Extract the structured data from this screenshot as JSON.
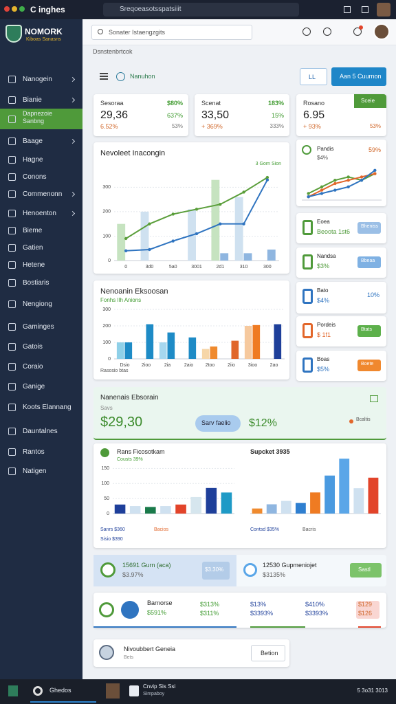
{
  "browser": {
    "tab": "C inghes",
    "url": "Sreqoeasotsspatsiiit"
  },
  "sidebar": {
    "logo": "NOMORK",
    "logo_sub": "Kiboas Sanasns",
    "active": 2,
    "menu": [
      "Nanogein",
      "Bianie",
      "Dapnezoie Sanbng",
      "Baage",
      "Hagne",
      "Conons",
      "Commenonn",
      "Henoenton",
      "Bieme",
      "Gatien",
      "Hetene",
      "Bostiaris",
      "Nengiong",
      "Gaminges",
      "Gatois",
      "Coraio",
      "Ganige",
      "Koots Elannang",
      "Dauntalnes",
      "Rantos",
      "Natigen"
    ]
  },
  "header": {
    "search": "Sonater Istaengzgits",
    "breadcrumb": "Dsnstenbrtcok"
  },
  "toolbar": {
    "label": "Nanuhon",
    "button_1": "LL",
    "button_2": "Aan 5 Cuurnon"
  },
  "stats": [
    {
      "title": "Sesoraa",
      "change": "$80%",
      "value": "29,36",
      "delta": "637%",
      "sub": "6.52%",
      "sub_2": "53%"
    },
    {
      "title": "Scenat",
      "change": "183%",
      "value": "33,50",
      "delta": "15%",
      "sub": "+ 369%",
      "sub_2": "333%"
    },
    {
      "title": "Rosano",
      "button": "Sceie",
      "value": "6.95",
      "sub": "+ 93%",
      "sub_2": "53%"
    }
  ],
  "trend_chart": {
    "type": "bar",
    "title": "Nevoleet Inacongin",
    "legend": "3 Gorn Sion",
    "categories": [
      "0",
      "3d0",
      "5a0",
      "3001",
      "2d1",
      "310",
      "300"
    ],
    "ylim": [
      0,
      360
    ],
    "yticks": [
      0,
      100,
      200,
      300
    ],
    "series": [
      {
        "type": "bar",
        "color": "#cfe1f0",
        "colors": [
          "#c6e3c0",
          "#cfe1f0",
          "#cfe1f0",
          "#cfe1f0",
          "#c6e3c0",
          "#cfe1f0",
          "#cfe1f0"
        ],
        "values": [
          150,
          200,
          null,
          210,
          330,
          260,
          null
        ]
      },
      {
        "type": "bar",
        "color": "#8fb6e0",
        "values": [
          null,
          null,
          null,
          null,
          30,
          30,
          45
        ]
      },
      {
        "type": "line",
        "color": "#5a9e3a",
        "values": [
          90,
          150,
          190,
          210,
          230,
          280,
          340
        ]
      },
      {
        "type": "line",
        "color": "#2f74c0",
        "values": [
          40,
          45,
          80,
          110,
          150,
          150,
          330
        ]
      }
    ]
  },
  "bar_chart": {
    "type": "bar",
    "title": "Nenoanin Eksoosan",
    "subtitle": "Fonhs Ilh Anions",
    "footer": "Rasosio btas",
    "categories": [
      "Dsio",
      "2ioo",
      "2ia",
      "2aio",
      "2too",
      "2iio",
      "3ioo",
      "2ao"
    ],
    "ylim": [
      0,
      300
    ],
    "yticks": [
      0,
      100,
      200,
      300
    ],
    "series": [
      {
        "type": "bar",
        "color": "#cfe1f0",
        "colors": [
          "#8fd0e8",
          "#cfe1f0",
          "#a6d7ef",
          "#cfe1f0",
          "#f6d6a8",
          "#f6d6a8",
          "#f6c99e",
          "#cfe1f0"
        ],
        "values": [
          100,
          null,
          100,
          null,
          60,
          null,
          200,
          null
        ]
      },
      {
        "type": "bar",
        "color": "#1e8bc6",
        "colors": [
          "#1e8bc6",
          "#1e8bc6",
          "#1e8bc6",
          "#1e8bc6",
          "#ef8a2e",
          "#e0662a",
          "#ef7b22",
          "#1e3f9a"
        ],
        "values": [
          100,
          210,
          160,
          130,
          75,
          110,
          205,
          210
        ]
      }
    ]
  },
  "summary": {
    "title": "Nanenais Ebsorain",
    "subtitle": "Savs",
    "value": "$29,30",
    "button": "Sarv faelio",
    "change": "$12%",
    "legend": "Bcaltis"
  },
  "left_chart": {
    "type": "bar",
    "title": "Rans Ficosotkam",
    "subtitle": "Cousts 39%",
    "ylim": [
      0,
      160
    ],
    "yticks": [
      0,
      50,
      100,
      150
    ],
    "footer": [
      "Sanrs $360",
      "Bacios",
      "Sisio $390"
    ],
    "series": [
      {
        "type": "bar",
        "color": "#1e3f9a",
        "colors": [
          "#1e3f9a",
          "#cfe1f0",
          "#1a7a4a",
          "#cfe1f0",
          "#e2442a",
          "#d6e6ee",
          "#1e3f9a",
          "#1e9ac6"
        ],
        "values": [
          30,
          25,
          22,
          25,
          30,
          55,
          85,
          70
        ]
      }
    ]
  },
  "right_chart": {
    "type": "bar",
    "title": "Supcket 3935",
    "ylim": [
      0,
      140
    ],
    "footer": [
      "Contsd $35%",
      "Bacris"
    ],
    "series": [
      {
        "type": "bar",
        "color": "#4a9ae0",
        "colors": [
          "#ef8a2e",
          "#8fb6e0",
          "#cfe1f0",
          "#2f7fd0",
          "#ef7b22",
          "#4a9ae0",
          "#5aa6e8",
          "#cfe1f0",
          "#e2442a"
        ],
        "values": [
          12,
          22,
          30,
          25,
          50,
          90,
          130,
          60,
          85
        ]
      }
    ]
  },
  "promo": [
    {
      "title": "15691 Gurn (aca)",
      "value": "$3.97%",
      "pill": "$3.30%"
    },
    {
      "title": "12530 Gupmeniojet",
      "value": "$3135%",
      "button": "Sastl"
    }
  ],
  "metrics": {
    "title": "Barnorse",
    "value": "$591%",
    "cells": [
      [
        "$313%",
        "$311%"
      ],
      [
        "$13%",
        "$3393%"
      ],
      [
        "$410%",
        "$3393%"
      ],
      [
        "$129",
        "$126"
      ]
    ]
  },
  "footer_card": {
    "title": "Nivoubbert Geneia",
    "subtitle": "Bets",
    "button": "Betion"
  },
  "side_chart": {
    "type": "line",
    "title": "Pandis",
    "value": "59%",
    "sub": "$4%",
    "ylim": [
      0,
      10
    ],
    "series": [
      {
        "type": "line",
        "color": "#5a9e3a",
        "values": [
          2,
          4,
          6,
          7,
          6,
          8
        ]
      },
      {
        "type": "line",
        "color": "#e2662a",
        "values": [
          1,
          3,
          5,
          6,
          7,
          8
        ]
      },
      {
        "type": "line",
        "color": "#2f74c0",
        "values": [
          1,
          2,
          3,
          4,
          6,
          9
        ]
      }
    ]
  },
  "side_cards": [
    {
      "title": "Eoea",
      "sub": "Beoota 1st6",
      "button": "Bheniss"
    },
    {
      "title": "Nandsa",
      "sub": "$3%",
      "button": "Bbeaa"
    },
    {
      "title": "Bato",
      "sub": "$4%",
      "value": "10%"
    },
    {
      "title": "Pordeis",
      "sub": "$ 1f1",
      "button": "Btats"
    },
    {
      "title": "Boas",
      "sub": "$5%",
      "button": "Boete"
    }
  ],
  "taskbar": {
    "start": "Ghedos",
    "app": "Cnvip Sis Ssi",
    "app_sub": "Simpaboy",
    "clock": "5 3o31 3013"
  }
}
